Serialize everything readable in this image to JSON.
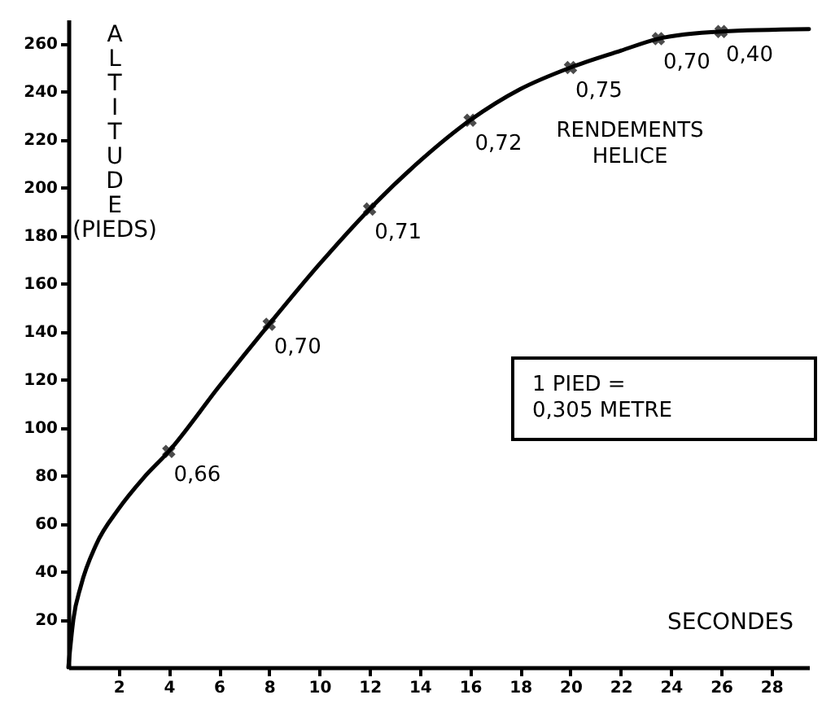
{
  "chart_data": {
    "type": "line",
    "xlabel": "SECONDES",
    "ylabel": "ALTITUDE (PIEDS)",
    "xlim": [
      0,
      29.5
    ],
    "ylim": [
      0,
      270
    ],
    "xticks": [
      2,
      4,
      6,
      8,
      10,
      12,
      14,
      16,
      18,
      20,
      22,
      24,
      26,
      28
    ],
    "yticks": [
      20,
      40,
      60,
      80,
      100,
      120,
      140,
      160,
      180,
      200,
      220,
      240,
      260
    ],
    "grid": false,
    "series": [
      {
        "type": "line",
        "color": "#000000",
        "marker": "none",
        "x": [
          0,
          0.2,
          0.5,
          1.1,
          2,
          3,
          4,
          6,
          8,
          10,
          12,
          14,
          16,
          18,
          20,
          22,
          23.5,
          26,
          29.5
        ],
        "values": [
          0,
          20,
          34,
          51,
          66,
          79,
          90,
          117,
          143,
          168,
          191,
          211,
          228,
          241,
          250,
          257,
          262,
          265,
          266
        ]
      },
      {
        "type": "scatter",
        "color": "#000000",
        "marker": "cross",
        "x": [
          4,
          8,
          12,
          16,
          20,
          23.5,
          26
        ],
        "values": [
          90,
          143,
          191,
          228,
          250,
          262,
          265
        ]
      }
    ],
    "annotations": [
      {
        "text": "0,66",
        "x": 4,
        "y": 90
      },
      {
        "text": "0,70",
        "x": 8,
        "y": 143
      },
      {
        "text": "0,71",
        "x": 12,
        "y": 191
      },
      {
        "text": "0,72",
        "x": 16,
        "y": 228
      },
      {
        "text": "0,75",
        "x": 20,
        "y": 250
      },
      {
        "text": "0,70",
        "x": 23.5,
        "y": 262
      },
      {
        "text": "0,40",
        "x": 26,
        "y": 265
      },
      "RENDEMENTS\nHELICE",
      "1 PIED =\n0,305 METRE"
    ]
  }
}
